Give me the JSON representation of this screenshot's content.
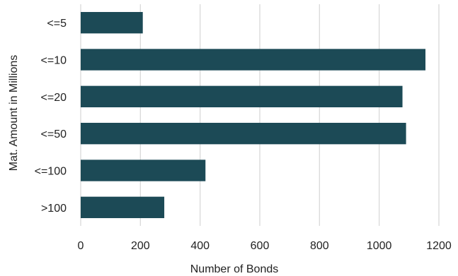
{
  "chart_data": {
    "type": "bar",
    "orientation": "horizontal",
    "categories": [
      "<=5",
      "<=10",
      "<=20",
      "<=50",
      "<=100",
      ">100"
    ],
    "values": [
      208,
      1155,
      1078,
      1090,
      418,
      280
    ],
    "xlabel": "Number of Bonds",
    "ylabel": "Mat. Amount in Millions",
    "xlim": [
      0,
      1200
    ],
    "xticks": [
      0,
      200,
      400,
      600,
      800,
      1000,
      1200
    ],
    "grid": "vertical",
    "bar_color": "#1c4a56",
    "legend": "none"
  }
}
